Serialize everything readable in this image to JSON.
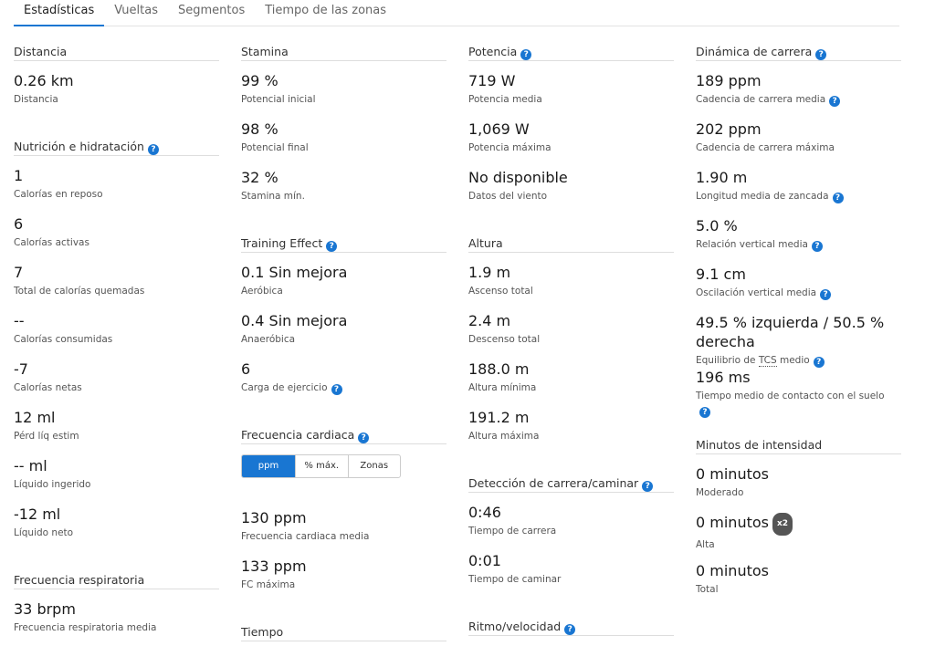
{
  "tabs": [
    {
      "label": "Estadísticas",
      "active": true
    },
    {
      "label": "Vueltas"
    },
    {
      "label": "Segmentos"
    },
    {
      "label": "Tiempo de las zonas"
    }
  ],
  "help_icon": "?",
  "accent_color": "#1976d2",
  "columns": [
    {
      "sections": [
        {
          "title": "Distancia",
          "items": [
            {
              "value": "0.26 km",
              "label": "Distancia"
            }
          ]
        },
        {
          "title": "Nutrición e hidratación",
          "help": true,
          "items": [
            {
              "value": "1",
              "label": "Calorías en reposo"
            },
            {
              "value": "6",
              "label": "Calorías activas"
            },
            {
              "value": "7",
              "label": "Total de calorías quemadas"
            },
            {
              "value": "--",
              "label": "Calorías consumidas"
            },
            {
              "value": "-7",
              "label": "Calorías netas"
            },
            {
              "value": "12 ml",
              "label": "Pérd líq estim"
            },
            {
              "value": "-- ml",
              "label": "Líquido ingerido"
            },
            {
              "value": "-12 ml",
              "label": "Líquido neto"
            }
          ]
        },
        {
          "title": "Frecuencia respiratoria",
          "items": [
            {
              "value": "33 brpm",
              "label": "Frecuencia respiratoria media"
            }
          ]
        }
      ]
    },
    {
      "sections": [
        {
          "title": "Stamina",
          "items": [
            {
              "value": "99 %",
              "label": "Potencial inicial"
            },
            {
              "value": "98 %",
              "label": "Potencial final"
            },
            {
              "value": "32 %",
              "label": "Stamina mín."
            }
          ]
        },
        {
          "title": "Training Effect",
          "help": true,
          "items": [
            {
              "value": "0.1 Sin mejora",
              "label": "Aeróbica"
            },
            {
              "value": "0.4 Sin mejora",
              "label": "Anaeróbica"
            },
            {
              "value": "6",
              "label": "Carga de ejercicio",
              "help": true
            }
          ]
        },
        {
          "title": "Frecuencia cardiaca",
          "help": true,
          "toggle": {
            "options": [
              "ppm",
              "% máx.",
              "Zonas"
            ],
            "selected": "ppm"
          },
          "items": [
            {
              "value": "130 ppm",
              "label": "Frecuencia cardiaca media"
            },
            {
              "value": "133 ppm",
              "label": "FC máxima"
            }
          ]
        },
        {
          "title": "Tiempo",
          "items": []
        }
      ]
    },
    {
      "sections": [
        {
          "title": "Potencia",
          "help": true,
          "items": [
            {
              "value": "719 W",
              "label": "Potencia media"
            },
            {
              "value": "1,069 W",
              "label": "Potencia máxima"
            },
            {
              "value": "No disponible",
              "label": "Datos del viento"
            }
          ]
        },
        {
          "title": "Altura",
          "items": [
            {
              "value": "1.9 m",
              "label": "Ascenso total"
            },
            {
              "value": "2.4 m",
              "label": "Descenso total"
            },
            {
              "value": "188.0 m",
              "label": "Altura mínima"
            },
            {
              "value": "191.2 m",
              "label": "Altura máxima"
            }
          ]
        },
        {
          "title": "Detección de carrera/caminar",
          "help": true,
          "items": [
            {
              "value": "0:46",
              "label": "Tiempo de carrera"
            },
            {
              "value": "0:01",
              "label": "Tiempo de caminar"
            }
          ]
        },
        {
          "title": "Ritmo/velocidad",
          "help": true,
          "items": []
        }
      ]
    },
    {
      "sections": [
        {
          "title": "Dinámica de carrera",
          "help": true,
          "items": [
            {
              "value": "189 ppm",
              "label": "Cadencia de carrera media",
              "help": true
            },
            {
              "value": "202 ppm",
              "label": "Cadencia de carrera máxima"
            },
            {
              "value": "1.90 m",
              "label": "Longitud media de zancada",
              "help": true
            },
            {
              "value": "5.0 %",
              "label": "Relación vertical media",
              "help": true
            },
            {
              "value": "9.1 cm",
              "label": "Oscilación vertical media",
              "help": true
            },
            {
              "value": "49.5 % izquierda / 50.5 % derecha",
              "label_pre": "Equilibrio de ",
              "label_abbr": "TCS",
              "label_post": " medio",
              "help": true
            },
            {
              "value": "196 ms",
              "label": "Tiempo medio de contacto con el suelo",
              "help": true
            }
          ]
        },
        {
          "title": "Minutos de intensidad",
          "items": [
            {
              "value": "0 minutos",
              "label": "Moderado"
            },
            {
              "value": "0 minutos",
              "label": "Alta",
              "badge": "x2"
            },
            {
              "value": "0 minutos",
              "label": "Total"
            }
          ]
        }
      ]
    }
  ]
}
